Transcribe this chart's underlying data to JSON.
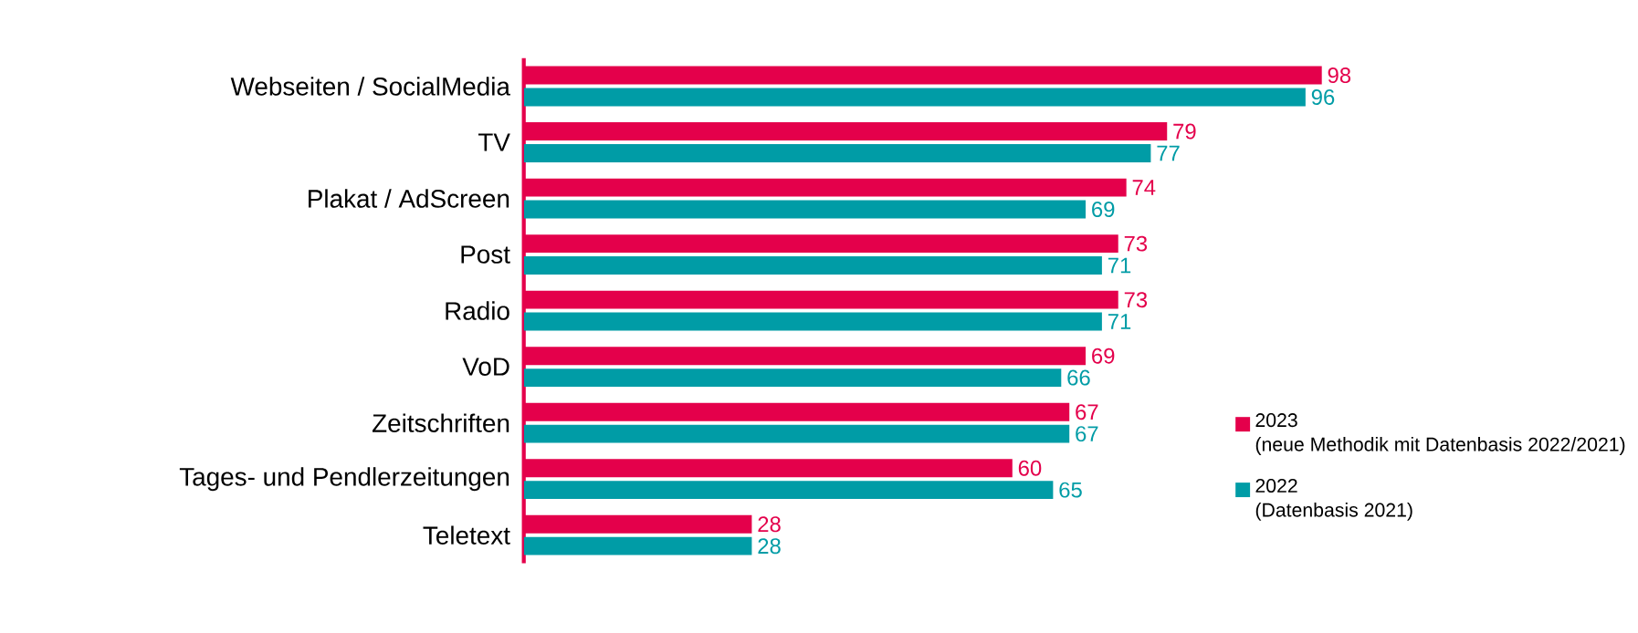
{
  "chart_data": {
    "type": "bar",
    "orientation": "horizontal",
    "data_labels": true,
    "legend": "bottom right",
    "categories": [
      "Webseiten / SocialMedia",
      "TV",
      "Plakat / AdScreen",
      "Post",
      "Radio",
      "VoD",
      "Zeitschriften",
      "Tages- und Pendlerzeitungen",
      "Teletext"
    ],
    "series": [
      {
        "name": "2023",
        "color": "#e4004b",
        "values": [
          98,
          79,
          74,
          73,
          73,
          69,
          67,
          60,
          28
        ]
      },
      {
        "name": "2022",
        "color": "#009ca6",
        "values": [
          96,
          77,
          69,
          71,
          71,
          66,
          67,
          65,
          28
        ]
      }
    ],
    "annotations": [
      "(neue Methodik mit Datenbasis 2022/2021)",
      "(Datenbasis 2021)"
    ]
  }
}
